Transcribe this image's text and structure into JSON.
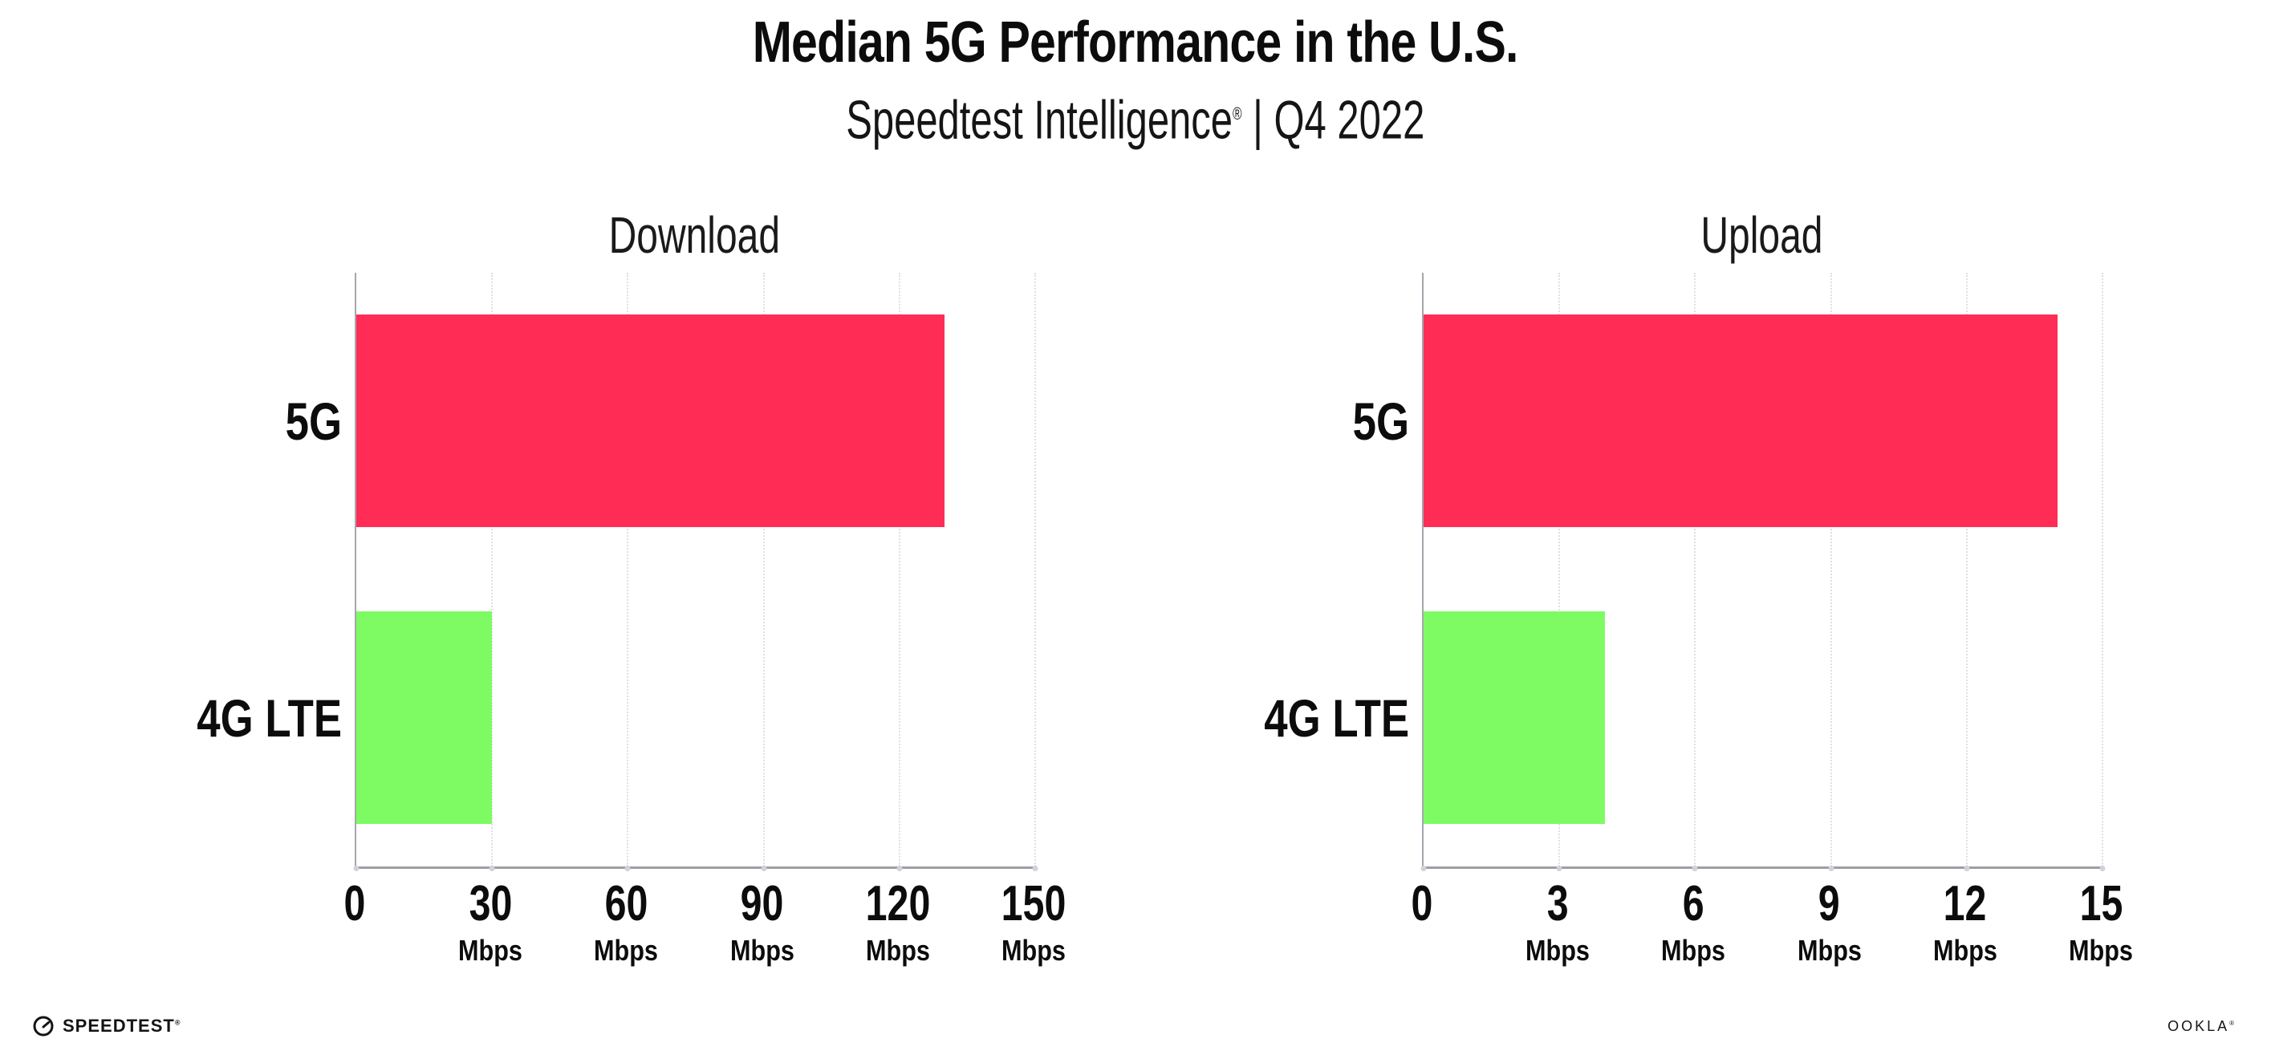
{
  "header": {
    "title": "Median 5G Performance in the U.S.",
    "subtitle_brand": "Speedtest Intelligence",
    "subtitle_mark": "®",
    "subtitle_rest": " | Q4 2022"
  },
  "chart_data": [
    {
      "type": "bar",
      "orientation": "horizontal",
      "title": "Download",
      "categories": [
        "5G",
        "4G LTE"
      ],
      "values": [
        130,
        30
      ],
      "unit": "Mbps",
      "xlim": [
        0,
        150
      ],
      "xticks": [
        0,
        30,
        60,
        90,
        120,
        150
      ],
      "grid": "vertical-dotted",
      "legend": "none",
      "bar_colors": [
        "#ff2d55",
        "#7efb63"
      ]
    },
    {
      "type": "bar",
      "orientation": "horizontal",
      "title": "Upload",
      "categories": [
        "5G",
        "4G LTE"
      ],
      "values": [
        14,
        4
      ],
      "unit": "Mbps",
      "xlim": [
        0,
        15
      ],
      "xticks": [
        0,
        3,
        6,
        9,
        12,
        15
      ],
      "grid": "vertical-dotted",
      "legend": "none",
      "bar_colors": [
        "#ff2d55",
        "#7efb63"
      ]
    }
  ],
  "footer": {
    "speedtest_label": "SPEEDTEST",
    "speedtest_mark": "®",
    "speedtest_icon": "gauge-icon",
    "ookla_label": "OOKLA",
    "ookla_mark": "®"
  },
  "colors": {
    "bar_5g": "#ff2d55",
    "bar_4g_lte": "#7efb63",
    "axis": "#a6a6ac",
    "gridline": "#dfdfe6",
    "text": "#0c0c0c"
  }
}
